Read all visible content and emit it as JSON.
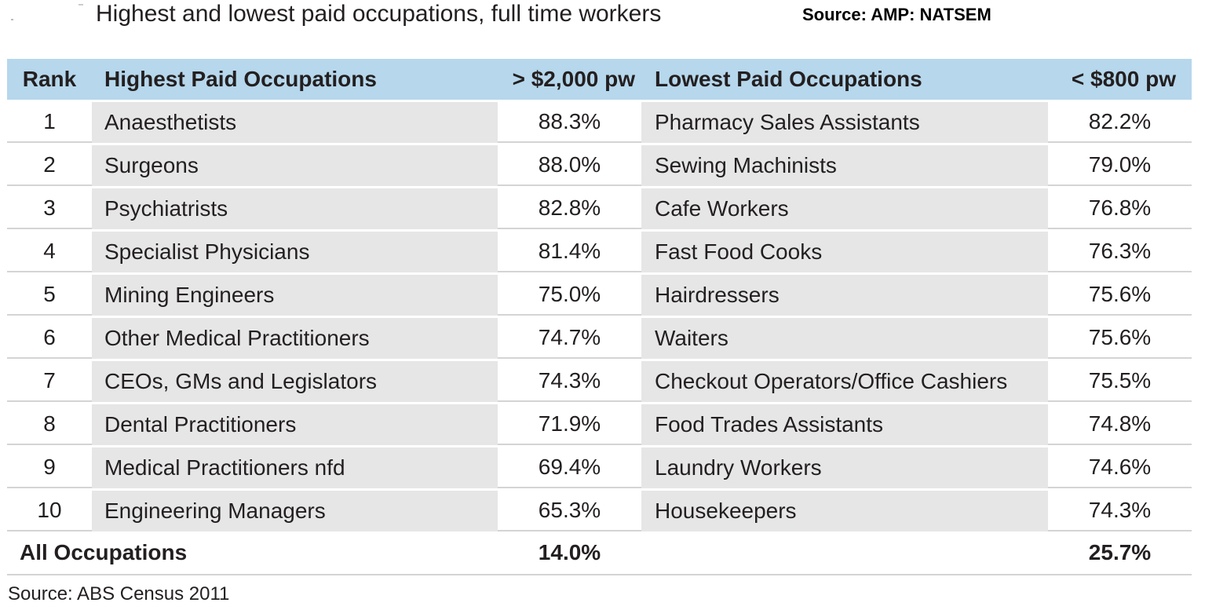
{
  "title": "Highest and lowest paid occupations, full time workers",
  "top_source": "Source: AMP: NATSEM",
  "footer_source": "Source: ABS Census 2011",
  "colors": {
    "header_bg": "#b6d7ec",
    "cell_bg": "#e6e6e6",
    "rule": "#d4d4d4"
  },
  "chart_data": {
    "type": "table",
    "columns": [
      "Rank",
      "Highest Paid Occupations",
      "> $2,000 pw",
      "Lowest Paid Occupations",
      "< $800 pw"
    ],
    "rows": [
      [
        "1",
        "Anaesthetists",
        "88.3%",
        "Pharmacy Sales Assistants",
        "82.2%"
      ],
      [
        "2",
        "Surgeons",
        "88.0%",
        "Sewing Machinists",
        "79.0%"
      ],
      [
        "3",
        "Psychiatrists",
        "82.8%",
        "Cafe Workers",
        "76.8%"
      ],
      [
        "4",
        "Specialist Physicians",
        "81.4%",
        "Fast Food Cooks",
        "76.3%"
      ],
      [
        "5",
        "Mining Engineers",
        "75.0%",
        "Hairdressers",
        "75.6%"
      ],
      [
        "6",
        "Other Medical Practitioners",
        "74.7%",
        "Waiters",
        "75.6%"
      ],
      [
        "7",
        "CEOs, GMs and Legislators",
        "74.3%",
        "Checkout Operators/Office Cashiers",
        "75.5%"
      ],
      [
        "8",
        "Dental Practitioners",
        "71.9%",
        "Food Trades Assistants",
        "74.8%"
      ],
      [
        "9",
        "Medical Practitioners nfd",
        "69.4%",
        "Laundry Workers",
        "74.6%"
      ],
      [
        "10",
        "Engineering Managers",
        "65.3%",
        "Housekeepers",
        "74.3%"
      ]
    ],
    "total": {
      "label": "All Occupations",
      "high_pct": "14.0%",
      "low_pct": "25.7%"
    }
  }
}
